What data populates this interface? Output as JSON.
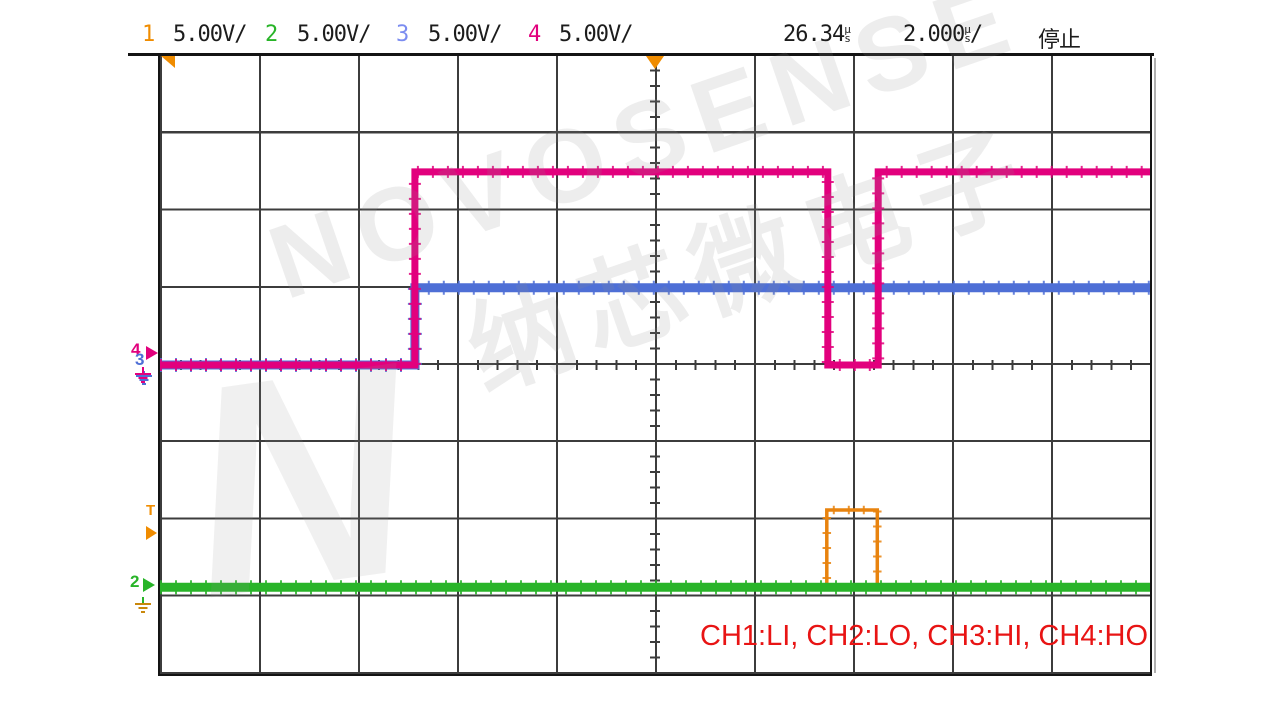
{
  "status_bar": {
    "channels": [
      {
        "number": "1",
        "scale": "5.00V/",
        "color": "#f08c00"
      },
      {
        "number": "2",
        "scale": "5.00V/",
        "color": "#28b428"
      },
      {
        "number": "3",
        "scale": "5.00V/",
        "color": "#7b8cf0"
      },
      {
        "number": "4",
        "scale": "5.00V/",
        "color": "#e2007d"
      }
    ],
    "delay": {
      "value": "26.34",
      "unit_top": "µ",
      "unit_bottom": "s"
    },
    "timebase": {
      "value": "2.000",
      "unit_top": "µ",
      "unit_bottom": "s",
      "suffix": "/"
    },
    "acquisition_status": "停止"
  },
  "markers": {
    "ch4_label": "4",
    "ch3_label": "3",
    "trigger_label": "T",
    "ch2_label": "2"
  },
  "annotation": "CH1:LI, CH2:LO, CH3:HI, CH4:HO",
  "watermark": {
    "line1": "NOVOSENSE",
    "line2": "纳芯微电子",
    "logo": "N"
  },
  "colors": {
    "ch1": "#e8830e",
    "ch2": "#28b428",
    "ch3": "#4e6fd6",
    "ch4": "#e2007d",
    "annotation": "#e81414"
  },
  "chart_data": {
    "type": "line",
    "title": "Oscilloscope capture: gate driver logic inputs/outputs",
    "x_unit": "µs",
    "x_per_div": 2.0,
    "divisions_x": 10,
    "divisions_y": 8,
    "volts_per_div": 5.0,
    "delay_readout_us": 26.34,
    "timebase_per_div": "2.000µs",
    "acquisition": "停止 (stopped)",
    "legend_note": "CH1:LI, CH2:LO, CH3:HI, CH4:HO",
    "series": [
      {
        "name": "CH1 (LI)",
        "color": "#e8830e",
        "offset_divs_below_center": 2.877,
        "stroke_width": 3.5,
        "noise": true,
        "points_us_v": [
          [
            0,
            0
          ],
          [
            13.47,
            0
          ],
          [
            13.47,
            5
          ],
          [
            14.49,
            5
          ],
          [
            14.49,
            0
          ],
          [
            20,
            0
          ]
        ]
      },
      {
        "name": "CH2 (LO)",
        "color": "#28b428",
        "offset_divs_below_center": 2.877,
        "stroke_width": 9,
        "noise": true,
        "points_us_v": [
          [
            0,
            0
          ],
          [
            20,
            0
          ]
        ]
      },
      {
        "name": "CH3 (HI)",
        "color": "#4e6fd6",
        "offset_divs_below_center": 0,
        "stroke_width": 9,
        "noise": true,
        "points_us_v": [
          [
            0,
            0
          ],
          [
            5.15,
            0
          ],
          [
            5.15,
            5
          ],
          [
            20,
            5
          ]
        ]
      },
      {
        "name": "CH4 (HO)",
        "color": "#e2007d",
        "offset_divs_below_center": 0,
        "stroke_width": 7,
        "noise": true,
        "points_us_v": [
          [
            0,
            0
          ],
          [
            5.15,
            0
          ],
          [
            5.15,
            12.5
          ],
          [
            13.49,
            12.5
          ],
          [
            13.49,
            0
          ],
          [
            14.51,
            0
          ],
          [
            14.51,
            12.5
          ],
          [
            20,
            12.5
          ]
        ]
      }
    ]
  }
}
